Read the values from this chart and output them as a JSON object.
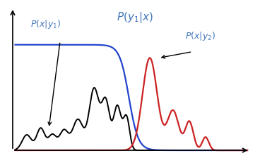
{
  "title": "$P(y_1|x)$",
  "label_pxy1": "$P(x|y_1)$",
  "label_pxy2": "$P(x|y_2)$",
  "label_color": "#4477bb",
  "bg_color": "#ffffff",
  "black_curve_color": "#000000",
  "blue_curve_color": "#2244cc",
  "red_curve_color": "#cc2222",
  "figsize": [
    3.68,
    2.25
  ],
  "dpi": 100
}
